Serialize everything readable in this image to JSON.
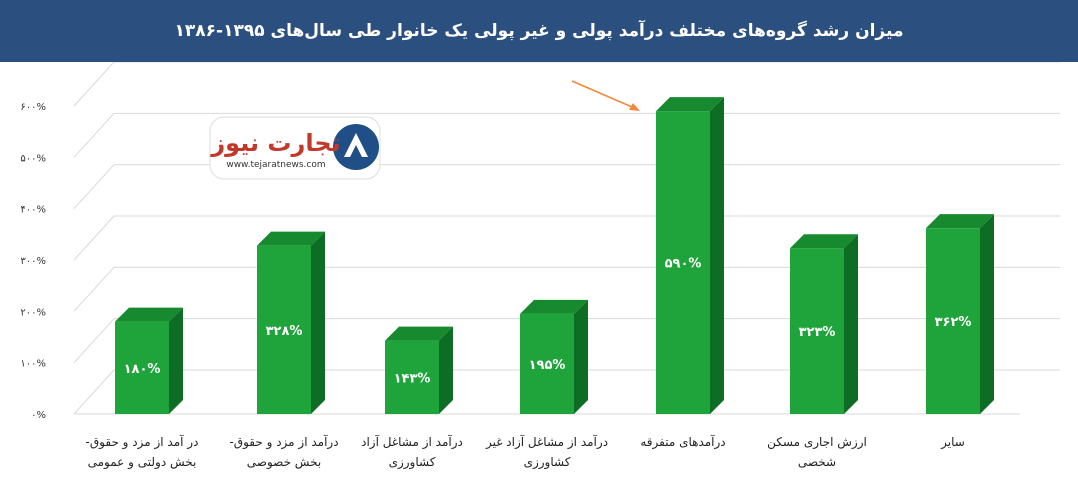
{
  "header": {
    "title": "میزان رشد گروه‌های مختلف درآمد پولی و غیر پولی یک خانوار طی سال‌های ۱۳۹۵-۱۳۸۶"
  },
  "logo": {
    "name": "تجارت نیوز",
    "url": "www.tejaratnews.com"
  },
  "colors": {
    "header": "#2b4f7e",
    "bar_front": "#1fa33b",
    "bar_top": "#178a2f",
    "bar_side": "#0e6d24",
    "arrow": "#f0883e"
  },
  "chart_data": {
    "type": "bar",
    "title": "میزان رشد گروه‌های مختلف درآمد پولی و غیر پولی یک خانوار طی سال‌های ۱۳۹۵-۱۳۸۶",
    "ylim": [
      0,
      600
    ],
    "yticks": [
      "۰%",
      "۱۰۰%",
      "۲۰۰%",
      "۳۰۰%",
      "۴۰۰%",
      "۵۰۰%",
      "۶۰۰%"
    ],
    "ytick_values": [
      0,
      100,
      200,
      300,
      400,
      500,
      600
    ],
    "grid": true,
    "categories": [
      [
        "در آمد از مزد و حقوق-",
        "بخش دولتی و عمومی"
      ],
      [
        "درآمد از مزد و حقوق-",
        "بخش خصوصی"
      ],
      [
        "درآمد از مشاغل آزاد",
        "کشاورزی"
      ],
      [
        "درآمد از مشاغل آزاد غیر",
        "کشاورزی"
      ],
      [
        "درآمدهای متفرقه"
      ],
      [
        "ارزش اجاری مسکن",
        "شخصی"
      ],
      [
        "سایر"
      ]
    ],
    "values": [
      180,
      328,
      143,
      195,
      590,
      323,
      362
    ],
    "data_labels": [
      "۱۸۰%",
      "۳۲۸%",
      "۱۴۳%",
      "۱۹۵%",
      "۵۹۰%",
      "۳۲۳%",
      "۳۶۲%"
    ],
    "highlight": "درآمدهای متفرقه"
  }
}
